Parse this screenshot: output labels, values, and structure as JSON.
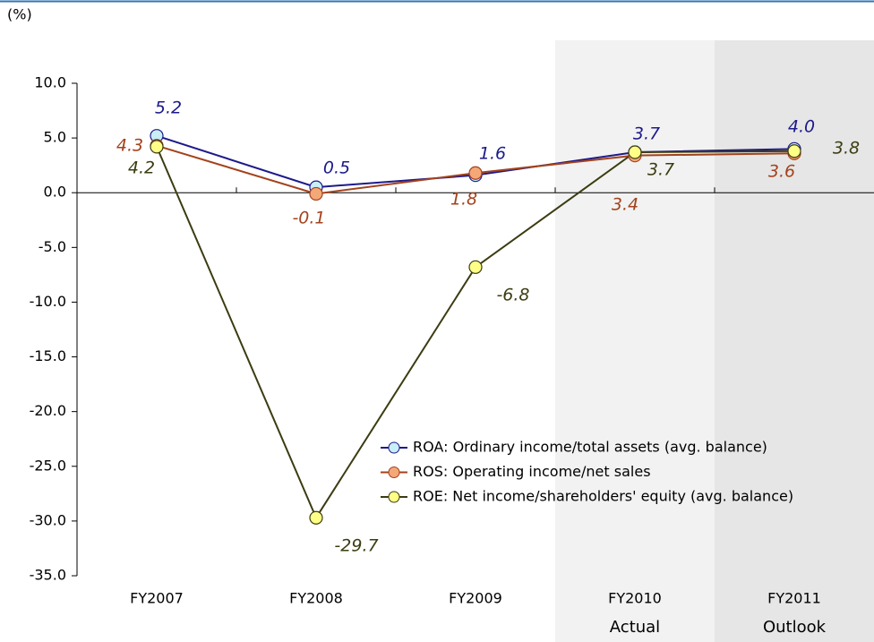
{
  "chart_data": {
    "type": "line",
    "y_unit": "(%)",
    "categories": [
      "FY2007",
      "FY2008",
      "FY2009",
      "FY2010",
      "FY2011"
    ],
    "shaded_periods": [
      {
        "category": "FY2010",
        "label": "Actual",
        "color": "#f2f2f2"
      },
      {
        "category": "FY2011",
        "label": "Outlook",
        "color": "#e6e6e6"
      }
    ],
    "series": [
      {
        "name": "ROA: Ordinary income/total assets (avg. balance)",
        "color": "#1c1a8a",
        "marker_color": "#c8eef8",
        "values": [
          5.2,
          0.5,
          1.6,
          3.7,
          4.0
        ],
        "value_labels": [
          "5.2",
          "0.5",
          "1.6",
          "3.7",
          "4.0"
        ]
      },
      {
        "name": "ROS: Operating income/net sales",
        "color": "#a3421c",
        "marker_color": "#f4a878",
        "values": [
          4.3,
          -0.1,
          1.8,
          3.4,
          3.6
        ],
        "value_labels": [
          "4.3",
          "-0.1",
          "1.8",
          "3.4",
          "3.6"
        ]
      },
      {
        "name": "ROE: Net income/shareholders' equity (avg. balance)",
        "color": "#3c3c12",
        "marker_color": "#ffff88",
        "values": [
          4.2,
          -29.7,
          -6.8,
          3.7,
          3.8
        ],
        "value_labels": [
          "4.2",
          "-29.7",
          "-6.8",
          "3.7",
          "3.8"
        ]
      }
    ],
    "ylim": [
      -35,
      10
    ],
    "yticks": [
      {
        "value": -35,
        "label": "-35.0"
      },
      {
        "value": -30,
        "label": "-30.0"
      },
      {
        "value": -25,
        "label": "-25.0"
      },
      {
        "value": -20,
        "label": "-20.0"
      },
      {
        "value": -15,
        "label": "-15.0"
      },
      {
        "value": -10,
        "label": "-10.0"
      },
      {
        "value": -5,
        "label": "-5.0"
      },
      {
        "value": 0,
        "label": "0.0"
      },
      {
        "value": 5,
        "label": "5.0"
      },
      {
        "value": 10,
        "label": "10.0"
      }
    ],
    "grid": false,
    "legend": "lower right"
  }
}
